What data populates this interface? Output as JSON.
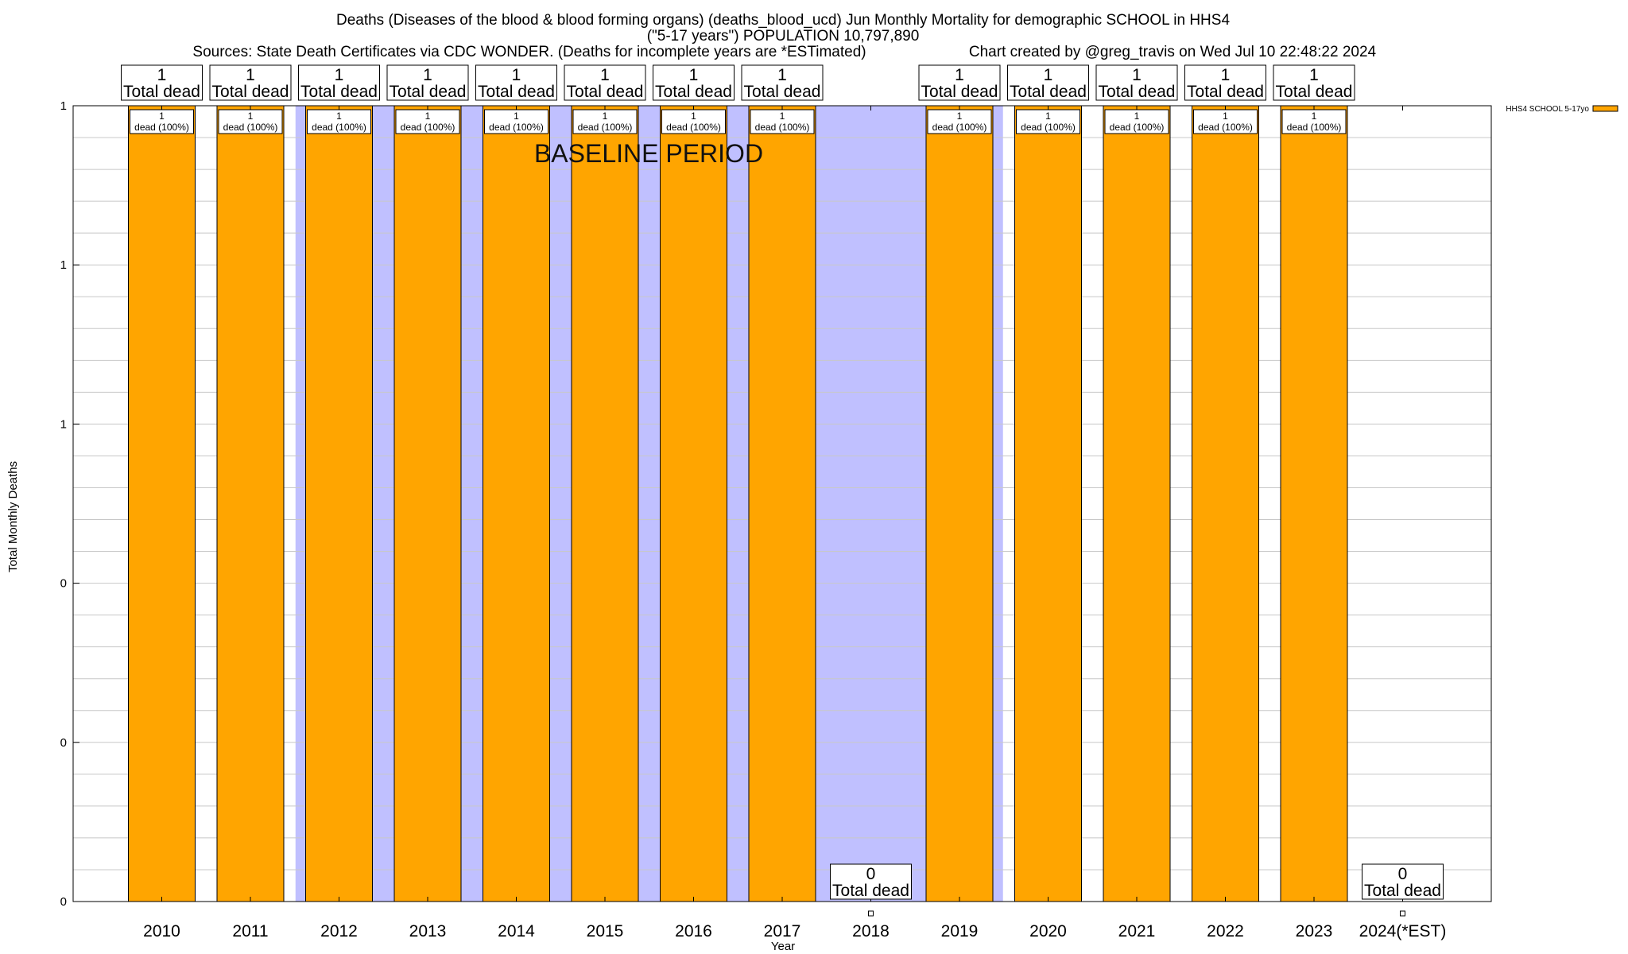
{
  "chart_data": {
    "type": "bar",
    "title_lines": [
      "Deaths (Diseases of the blood & blood forming organs) (deaths_blood_ucd) Jun Monthly Mortality for demographic SCHOOL in HHS4",
      "(\"5-17 years\") POPULATION 10,797,890"
    ],
    "sources": "Sources: State Death Certificates via CDC WONDER. (Deaths for incomplete years are *ESTimated)",
    "credit": "Chart created by @greg_travis on Wed Jul 10 22:48:22 2024",
    "xlabel": "Year",
    "ylabel": "Total Monthly Deaths",
    "categories": [
      "2010",
      "2011",
      "2012",
      "2013",
      "2014",
      "2015",
      "2016",
      "2017",
      "2018",
      "2019",
      "2020",
      "2021",
      "2022",
      "2023",
      "2024(*EST)"
    ],
    "series": [
      {
        "name": "HHS4 SCHOOL 5-17yo",
        "color": "#ffa500",
        "values": [
          1,
          1,
          1,
          1,
          1,
          1,
          1,
          1,
          0,
          1,
          1,
          1,
          1,
          1,
          0
        ]
      }
    ],
    "total_labels": [
      "1",
      "1",
      "1",
      "1",
      "1",
      "1",
      "1",
      "1",
      "0",
      "1",
      "1",
      "1",
      "1",
      "1",
      "0"
    ],
    "total_suffix": "Total dead",
    "inner_labels": [
      "dead (100%)",
      "dead (100%)",
      "dead (100%)",
      "dead (100%)",
      "dead (100%)",
      "dead (100%)",
      "dead (100%)",
      "dead (100%)",
      "",
      "dead (100%)",
      "dead (100%)",
      "dead (100%)",
      "dead (100%)",
      "dead (100%)",
      ""
    ],
    "ylim": [
      0,
      1
    ],
    "y_ticks": [
      {
        "value": 0,
        "label": "0"
      },
      {
        "value": 0.2,
        "label": "0"
      },
      {
        "value": 0.4,
        "label": "0"
      },
      {
        "value": 0.6,
        "label": "1"
      },
      {
        "value": 0.8,
        "label": "1"
      },
      {
        "value": 1.0,
        "label": "1"
      }
    ],
    "y_minor_step": 0.04,
    "baseline_period": {
      "label": "BASELINE PERIOD",
      "start_category": "2012",
      "end_category": "2019",
      "color": "#c0c0ff"
    },
    "legend_position": "top-right",
    "grid": true
  }
}
